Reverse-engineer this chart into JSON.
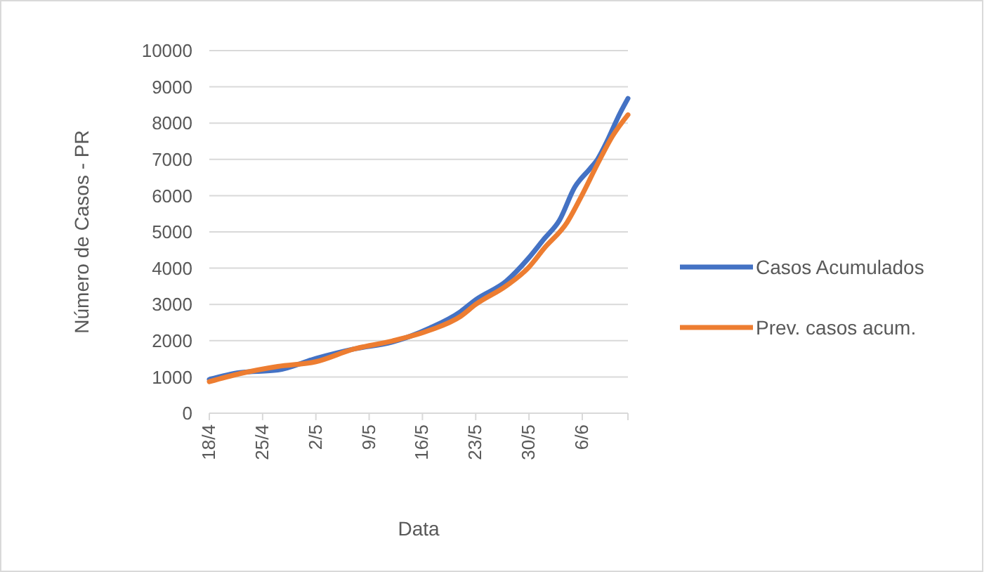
{
  "chart_data": {
    "type": "line",
    "xlabel": "Data",
    "ylabel": "Número de Casos - PR",
    "xlim": [
      "--04-18",
      "--06-12"
    ],
    "xticks": [
      {
        "value": "--04-18",
        "label": "18/4"
      },
      {
        "value": "--04-25",
        "label": "25/4"
      },
      {
        "value": "--05-02",
        "label": "2/5"
      },
      {
        "value": "--05-09",
        "label": "9/5"
      },
      {
        "value": "--05-16",
        "label": "16/5"
      },
      {
        "value": "--05-23",
        "label": "23/5"
      },
      {
        "value": "--05-30",
        "label": "30/5"
      },
      {
        "value": "--06-06",
        "label": "6/6"
      },
      {
        "value": "--06-12",
        "label": null
      }
    ],
    "ylim": [
      0,
      10000
    ],
    "yticks": [
      0,
      1000,
      2000,
      3000,
      4000,
      5000,
      6000,
      7000,
      8000,
      9000,
      10000
    ],
    "grid": "y",
    "legend": "right",
    "marker": "none",
    "line_style": "solid",
    "series": [
      {
        "name": "Casos Acumulados",
        "color": "#4472c4",
        "x": [
          "--04-18",
          "--04-22",
          "--04-27",
          "--05-02",
          "--05-07",
          "--05-12",
          "--05-17",
          "--05-21",
          "--05-23",
          "--05-27",
          "--05-30",
          "--06-01",
          "--06-03",
          "--06-05",
          "--06-07",
          "--06-08",
          "--06-09",
          "--06-11",
          "--06-12"
        ],
        "values": [
          930,
          1120,
          1190,
          1510,
          1770,
          1960,
          2350,
          2800,
          3130,
          3640,
          4290,
          4810,
          5320,
          6230,
          6740,
          7000,
          7390,
          8290,
          8680
        ]
      },
      {
        "name": "Prev. casos acum.",
        "color": "#ed7d31",
        "x": [
          "--04-18",
          "--04-22",
          "--04-27",
          "--05-02",
          "--05-07",
          "--05-12",
          "--05-17",
          "--05-21",
          "--05-23",
          "--05-27",
          "--05-30",
          "--06-01",
          "--06-04",
          "--06-06",
          "--06-08",
          "--06-10",
          "--06-12"
        ],
        "values": [
          870,
          1090,
          1290,
          1420,
          1770,
          1990,
          2290,
          2670,
          3000,
          3510,
          4030,
          4550,
          5260,
          6030,
          6870,
          7650,
          8230
        ]
      }
    ]
  }
}
